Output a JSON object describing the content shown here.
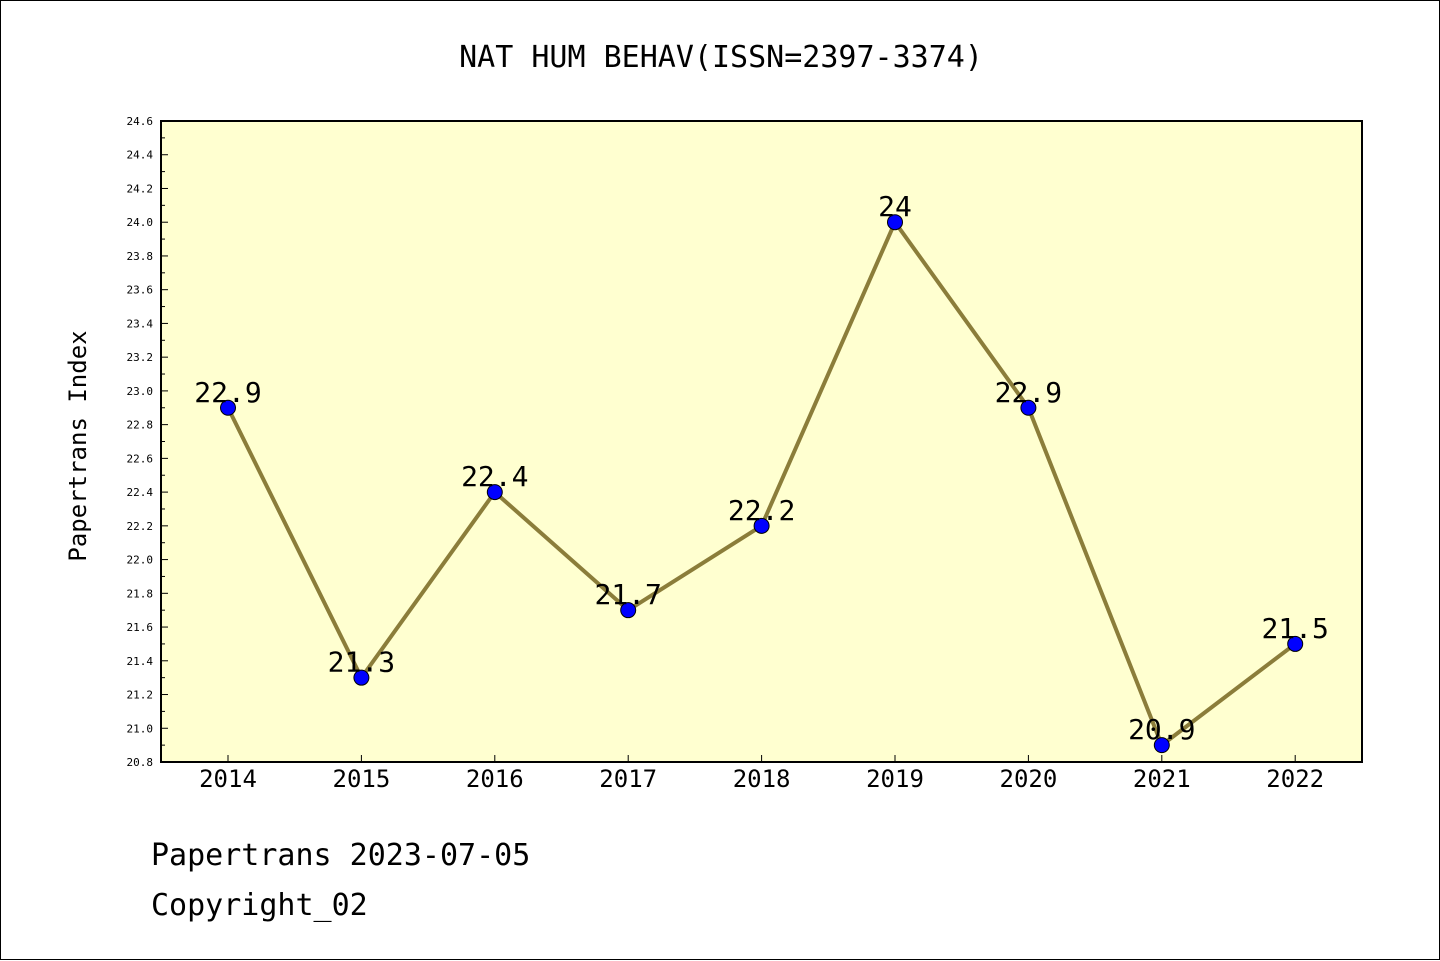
{
  "chart_data": {
    "type": "line",
    "title": "NAT HUM BEHAV(ISSN=2397-3374)",
    "xlabel": "",
    "ylabel": "Papertrans Index",
    "categories": [
      "2014",
      "2015",
      "2016",
      "2017",
      "2018",
      "2019",
      "2020",
      "2021",
      "2022"
    ],
    "series": [
      {
        "values": [
          22.9,
          21.3,
          22.4,
          21.7,
          22.2,
          24.0,
          22.9,
          20.9,
          21.5
        ],
        "labels": [
          "22.9",
          "21.3",
          "22.4",
          "21.7",
          "22.2",
          "24",
          "22.9",
          "20.9",
          "21.5"
        ]
      }
    ],
    "ylim": [
      20.8,
      24.6
    ],
    "yticks": [
      "20.8",
      "21.0",
      "21.2",
      "21.4",
      "21.6",
      "21.8",
      "22.0",
      "22.2",
      "22.4",
      "22.6",
      "22.8",
      "23.0",
      "23.2",
      "23.4",
      "23.6",
      "23.8",
      "24.0",
      "24.2",
      "24.4",
      "24.6"
    ],
    "grid": false,
    "colors": {
      "plot_background": "#ffffd0",
      "line": "#8b7d3a",
      "marker": "#0000ff"
    }
  },
  "footer": {
    "line1": "Papertrans 2023-07-05",
    "line2": "Copyright_02"
  }
}
